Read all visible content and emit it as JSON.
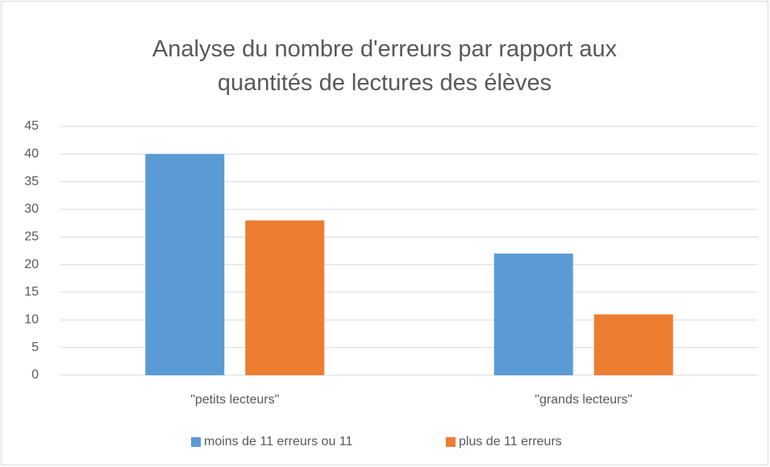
{
  "chart_data": {
    "type": "bar",
    "title": "Analyse du nombre d'erreurs par rapport aux quantités de lectures des élèves",
    "categories": [
      "\"petits lecteurs\"",
      "\"grands lecteurs\""
    ],
    "series": [
      {
        "name": "moins de 11 erreurs ou 11",
        "color": "#5b9bd5",
        "values": [
          40,
          22
        ]
      },
      {
        "name": "plus de 11 erreurs",
        "color": "#ed7d31",
        "values": [
          28,
          11
        ]
      }
    ],
    "ylim": [
      0,
      45
    ],
    "yticks": [
      0,
      5,
      10,
      15,
      20,
      25,
      30,
      35,
      40,
      45
    ],
    "grid": true,
    "legend": "bottom"
  }
}
